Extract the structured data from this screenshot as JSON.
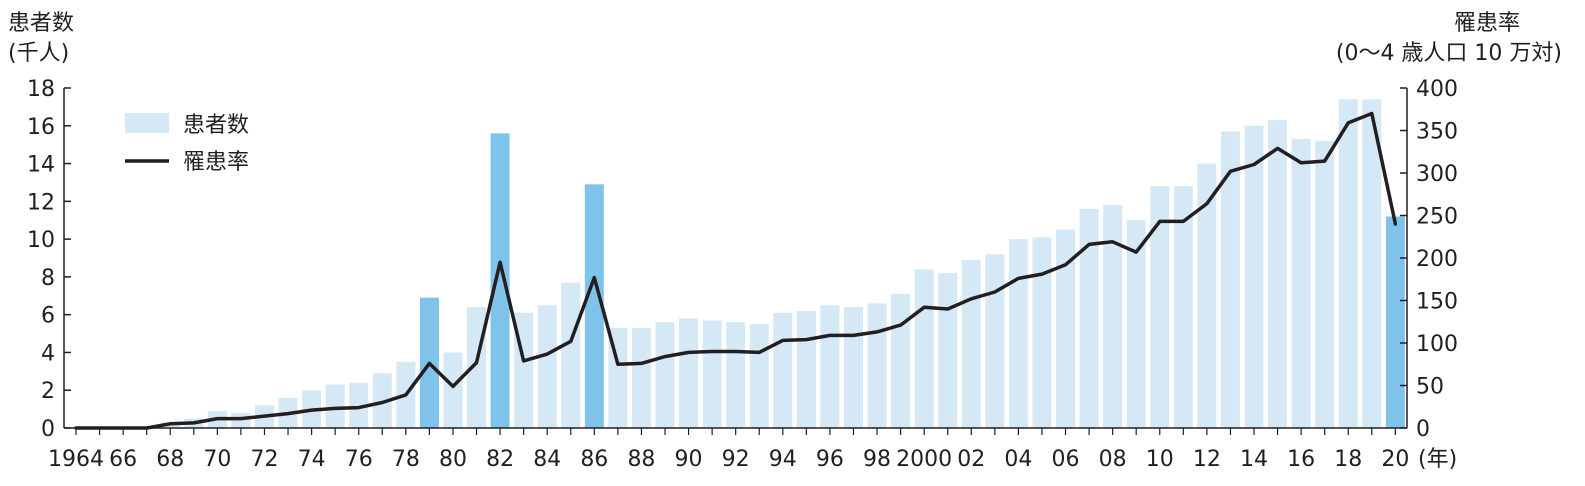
{
  "chart_data": {
    "type": "bar",
    "left_axis_label": [
      "患者数",
      "(千人)"
    ],
    "right_axis_label": [
      "罹患率",
      "(0〜4 歳人口 10 万対)"
    ],
    "x_unit": "(年)",
    "x_tick_labels": [
      "1964",
      "66",
      "68",
      "70",
      "72",
      "74",
      "76",
      "78",
      "80",
      "82",
      "84",
      "86",
      "88",
      "90",
      "92",
      "94",
      "96",
      "98",
      "2000",
      "02",
      "04",
      "06",
      "08",
      "10",
      "12",
      "14",
      "16",
      "18",
      "20"
    ],
    "left_ticks": [
      "0",
      "2",
      "4",
      "6",
      "8",
      "10",
      "12",
      "14",
      "16",
      "18"
    ],
    "right_ticks": [
      "0",
      "50",
      "100",
      "150",
      "200",
      "250",
      "300",
      "350",
      "400"
    ],
    "left_ylim": [
      0,
      18
    ],
    "right_ylim": [
      0,
      400
    ],
    "years": [
      1964,
      1965,
      1966,
      1967,
      1968,
      1969,
      1970,
      1971,
      1972,
      1973,
      1974,
      1975,
      1976,
      1977,
      1978,
      1979,
      1980,
      1981,
      1982,
      1983,
      1984,
      1985,
      1986,
      1987,
      1988,
      1989,
      1990,
      1991,
      1992,
      1993,
      1994,
      1995,
      1996,
      1997,
      1998,
      1999,
      2000,
      2001,
      2002,
      2003,
      2004,
      2005,
      2006,
      2007,
      2008,
      2009,
      2010,
      2011,
      2012,
      2013,
      2014,
      2015,
      2016,
      2017,
      2018,
      2019,
      2020
    ],
    "series": [
      {
        "name": "患者数",
        "type": "bar",
        "color": "#d5e8f6",
        "highlight_color": "#7fc3eb",
        "highlight_years": [
          1979,
          1982,
          1986,
          2020
        ],
        "values": [
          0.0,
          0.0,
          0.0,
          0.0,
          0.3,
          0.5,
          0.9,
          0.8,
          1.2,
          1.6,
          2.0,
          2.3,
          2.4,
          2.9,
          3.5,
          6.9,
          4.0,
          6.4,
          15.6,
          6.1,
          6.5,
          7.7,
          12.9,
          5.3,
          5.3,
          5.6,
          5.8,
          5.7,
          5.6,
          5.5,
          6.1,
          6.2,
          6.5,
          6.4,
          6.6,
          7.1,
          8.4,
          8.2,
          8.9,
          9.2,
          10.0,
          10.1,
          10.5,
          11.6,
          11.8,
          11.0,
          12.8,
          12.8,
          14.0,
          15.7,
          16.0,
          16.3,
          15.3,
          15.2,
          17.4,
          17.4,
          11.2
        ]
      },
      {
        "name": "罹患率",
        "type": "line",
        "axis": "right",
        "color": "#231f20",
        "values": [
          0,
          0,
          0,
          0,
          5,
          6,
          11,
          11,
          14,
          17,
          21,
          23,
          24,
          30,
          39,
          76,
          49,
          77,
          195,
          79,
          87,
          102,
          177,
          75,
          76,
          84,
          89,
          90,
          90,
          89,
          103,
          104,
          109,
          109,
          113,
          121,
          142,
          140,
          152,
          160,
          176,
          181,
          192,
          216,
          219,
          207,
          243,
          243,
          264,
          302,
          310,
          329,
          312,
          314,
          359,
          370,
          240
        ]
      }
    ],
    "legend": [
      {
        "label": "患者数",
        "kind": "bar"
      },
      {
        "label": "罹患率",
        "kind": "line"
      }
    ],
    "legend_position": "top-left"
  }
}
